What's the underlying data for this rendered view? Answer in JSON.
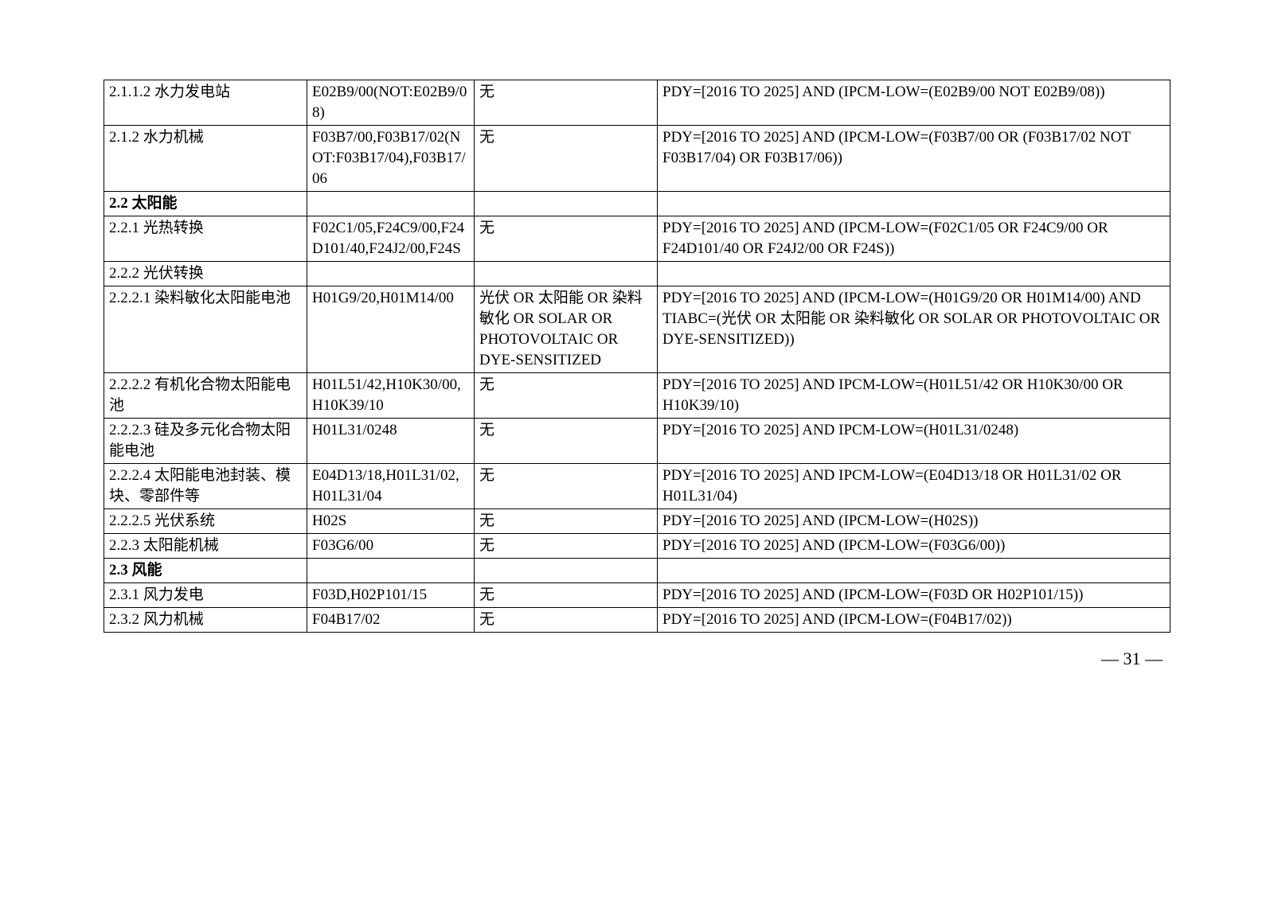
{
  "page_number": "— 31 —",
  "rows": [
    {
      "c1": "2.1.1.2 水力发电站",
      "c2": "E02B9/00(NOT:E02B9/08)",
      "c3": "无",
      "c4": "PDY=[2016 TO 2025] AND (IPCM-LOW=(E02B9/00 NOT E02B9/08))",
      "bold": false
    },
    {
      "c1": "2.1.2 水力机械",
      "c2": "F03B7/00,F03B17/02(NOT:F03B17/04),F03B17/06",
      "c3": "无",
      "c4": "PDY=[2016 TO 2025] AND (IPCM-LOW=(F03B7/00 OR (F03B17/02 NOT F03B17/04) OR F03B17/06))",
      "bold": false
    },
    {
      "c1": "2.2 太阳能",
      "c2": "",
      "c3": "",
      "c4": "",
      "bold": true
    },
    {
      "c1": "2.2.1 光热转换",
      "c2": "F02C1/05,F24C9/00,F24D101/40,F24J2/00,F24S",
      "c3": "无",
      "c4": "PDY=[2016 TO 2025] AND (IPCM-LOW=(F02C1/05 OR F24C9/00 OR F24D101/40 OR F24J2/00 OR F24S))",
      "bold": false
    },
    {
      "c1": "2.2.2 光伏转换",
      "c2": "",
      "c3": "",
      "c4": "",
      "bold": false
    },
    {
      "c1": "2.2.2.1 染料敏化太阳能电池",
      "c2": "H01G9/20,H01M14/00",
      "c3": "光伏 OR 太阳能 OR 染料敏化 OR SOLAR OR PHOTOVOLTAIC OR DYE-SENSITIZED",
      "c4": "PDY=[2016 TO 2025] AND (IPCM-LOW=(H01G9/20 OR H01M14/00) AND TIABC=(光伏 OR 太阳能 OR 染料敏化 OR SOLAR OR PHOTOVOLTAIC OR DYE-SENSITIZED))",
      "bold": false
    },
    {
      "c1": "2.2.2.2 有机化合物太阳能电池",
      "c2": "H01L51/42,H10K30/00,H10K39/10",
      "c3": "无",
      "c4": "PDY=[2016 TO 2025] AND IPCM-LOW=(H01L51/42 OR H10K30/00 OR H10K39/10)",
      "bold": false
    },
    {
      "c1": "2.2.2.3 硅及多元化合物太阳能电池",
      "c2": "H01L31/0248",
      "c3": "无",
      "c4": "PDY=[2016 TO 2025] AND IPCM-LOW=(H01L31/0248)",
      "bold": false
    },
    {
      "c1": "2.2.2.4 太阳能电池封装、模块、零部件等",
      "c2": "E04D13/18,H01L31/02,H01L31/04",
      "c3": "无",
      "c4": "PDY=[2016 TO 2025] AND IPCM-LOW=(E04D13/18 OR H01L31/02 OR H01L31/04)",
      "bold": false
    },
    {
      "c1": "2.2.2.5 光伏系统",
      "c2": "H02S",
      "c3": "无",
      "c4": "PDY=[2016 TO 2025] AND (IPCM-LOW=(H02S))",
      "bold": false
    },
    {
      "c1": "2.2.3 太阳能机械",
      "c2": "F03G6/00",
      "c3": "无",
      "c4": "PDY=[2016 TO 2025] AND (IPCM-LOW=(F03G6/00))",
      "bold": false
    },
    {
      "c1": "2.3 风能",
      "c2": "",
      "c3": "",
      "c4": "",
      "bold": true
    },
    {
      "c1": "2.3.1 风力发电",
      "c2": "F03D,H02P101/15",
      "c3": "无",
      "c4": "PDY=[2016 TO 2025] AND (IPCM-LOW=(F03D OR H02P101/15))",
      "bold": false
    },
    {
      "c1": "2.3.2 风力机械",
      "c2": "F04B17/02",
      "c3": "无",
      "c4": "PDY=[2016 TO 2025] AND (IPCM-LOW=(F04B17/02))",
      "bold": false
    }
  ]
}
